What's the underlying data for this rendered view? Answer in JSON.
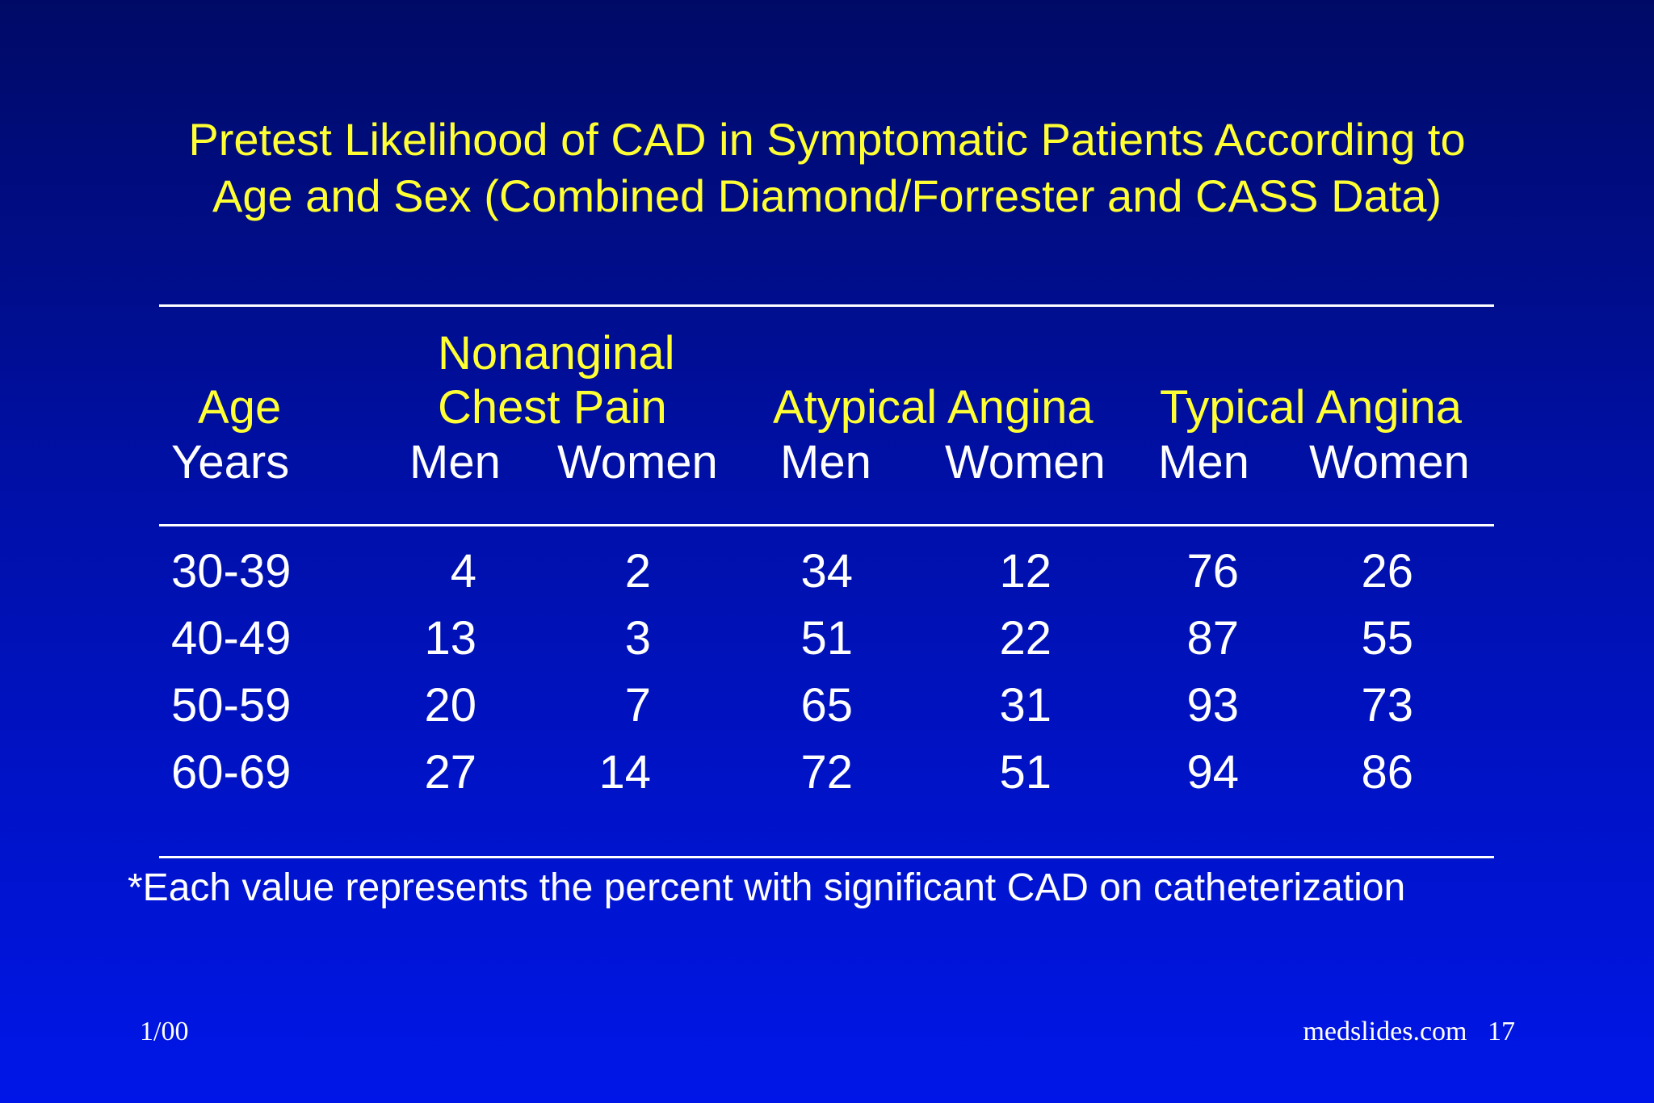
{
  "title": {
    "line1": "Pretest Likelihood of CAD in Symptomatic Patients According to",
    "line2": "Age and Sex (Combined Diamond/Forrester and CASS Data)"
  },
  "table": {
    "group_headers": {
      "age_line": "Age",
      "nonanginal_line1": "Nonanginal",
      "nonanginal_line2": "Chest Pain",
      "atypical": "Atypical Angina",
      "typical": "Typical Angina"
    },
    "sub_headers": {
      "years": "Years",
      "men1": "Men",
      "women1": "Women",
      "men2": "Men",
      "women2": "Women",
      "men3": "Men",
      "women3": "Women"
    },
    "rows": [
      [
        "30-39",
        "4",
        "2",
        "34",
        "12",
        "76",
        "26"
      ],
      [
        "40-49",
        "13",
        "3",
        "51",
        "22",
        "87",
        "55"
      ],
      [
        "50-59",
        "20",
        "7",
        "65",
        "31",
        "93",
        "73"
      ],
      [
        "60-69",
        "27",
        "14",
        "72",
        "51",
        "94",
        "86"
      ]
    ]
  },
  "footnote": "*Each value represents the percent with significant CAD on catheterization",
  "footer": {
    "date": "1/00",
    "source": "medslides.com",
    "page": "17"
  }
}
